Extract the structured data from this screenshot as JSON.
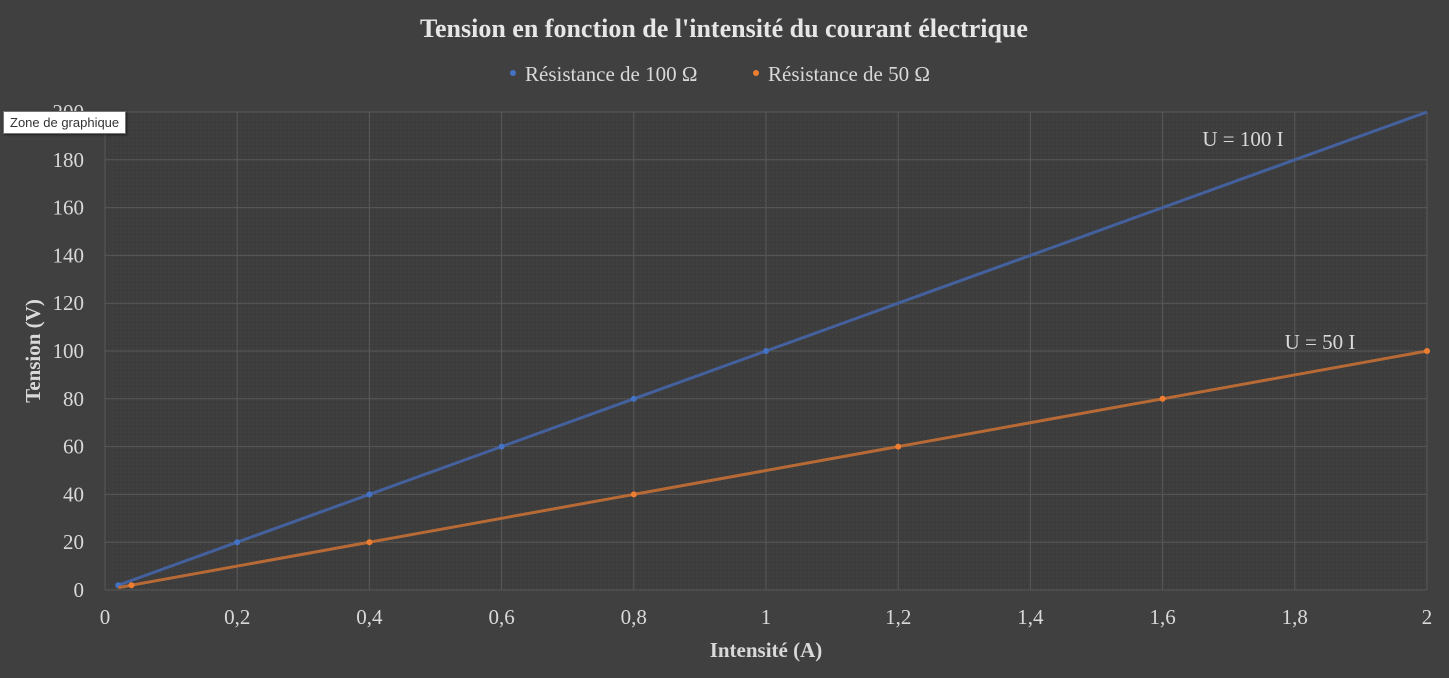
{
  "chart_data": {
    "type": "scatter",
    "title": "Tension en fonction de l'intensité du courant électrique",
    "xlabel": "Intensité (A)",
    "ylabel": "Tension (V)",
    "xlim": [
      0,
      2
    ],
    "ylim": [
      0,
      200
    ],
    "x_ticks": [
      "0",
      "0,2",
      "0,4",
      "0,6",
      "0,8",
      "1",
      "1,2",
      "1,4",
      "1,6",
      "1,8",
      "2"
    ],
    "y_ticks": [
      "0",
      "20",
      "40",
      "60",
      "80",
      "100",
      "120",
      "140",
      "160",
      "180",
      "200"
    ],
    "grid": true,
    "legend_position": "top",
    "series": [
      {
        "name": "Résistance de 100 Ω",
        "color": "#4472c4",
        "points": [
          [
            0.02,
            2
          ],
          [
            0.2,
            20
          ],
          [
            0.4,
            40
          ],
          [
            0.6,
            60
          ],
          [
            0.8,
            80
          ],
          [
            1,
            100
          ]
        ],
        "trendline": {
          "x": [
            0.02,
            2
          ],
          "y": [
            2,
            200
          ],
          "label": "U = 100 I"
        }
      },
      {
        "name": "Résistance de 50 Ω",
        "color": "#ed7d31",
        "points": [
          [
            0.04,
            2
          ],
          [
            0.4,
            20
          ],
          [
            0.8,
            40
          ],
          [
            1.2,
            60
          ],
          [
            1.6,
            80
          ],
          [
            2,
            100
          ]
        ],
        "trendline": {
          "x": [
            0.02,
            2
          ],
          "y": [
            1,
            100
          ],
          "label": "U = 50 I"
        }
      }
    ]
  },
  "tooltip": {
    "text": "Zone de graphique"
  }
}
